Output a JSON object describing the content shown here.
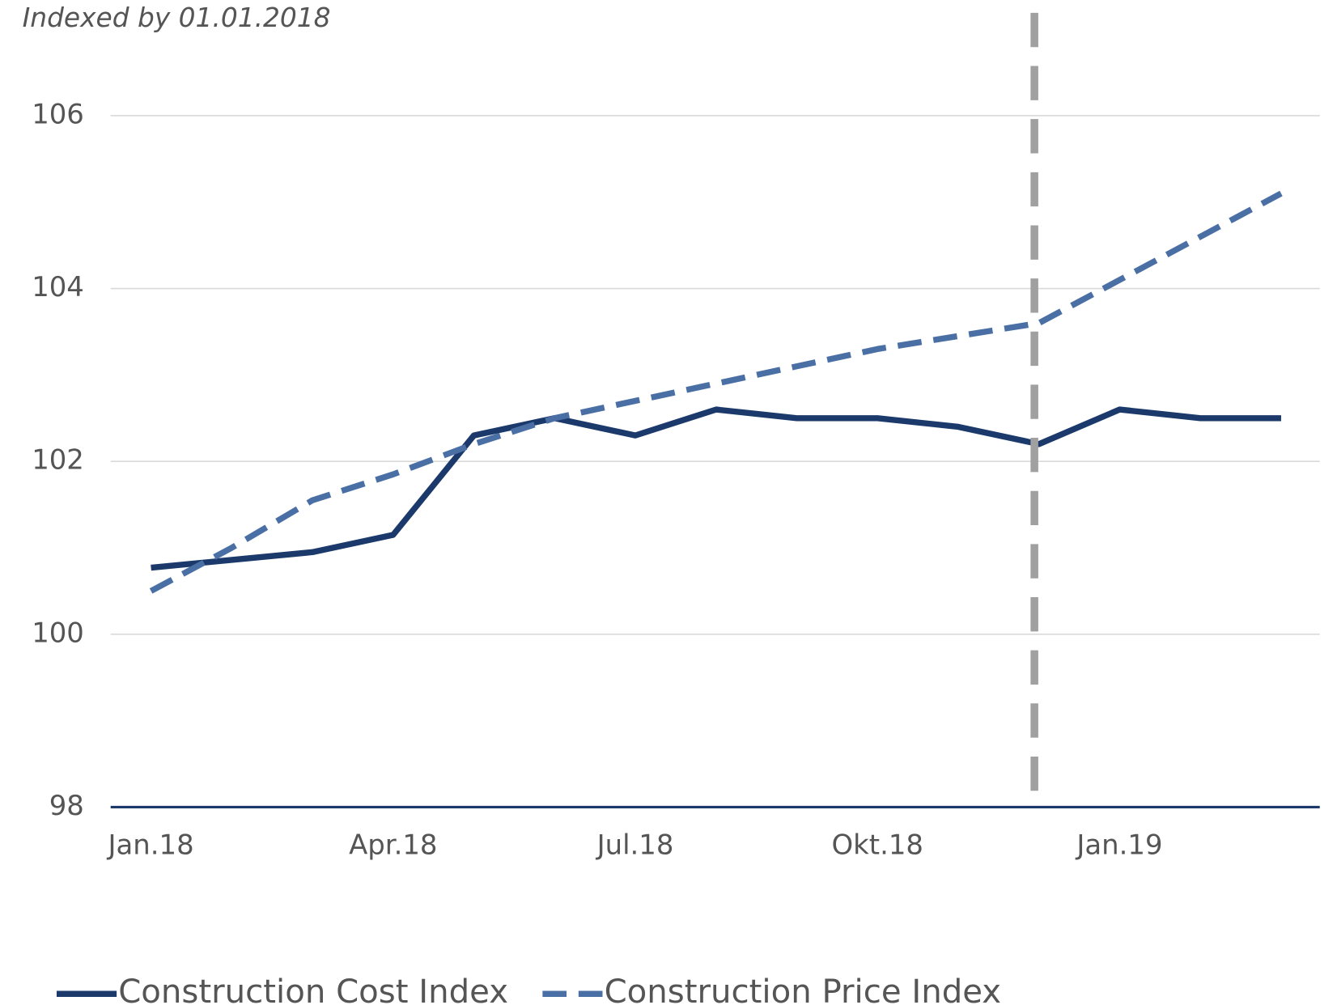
{
  "chart_data": {
    "type": "line",
    "subtitle": "Indexed by 01.01.2018",
    "categories": [
      "Jan.18",
      null,
      null,
      "Apr.18",
      null,
      null,
      "Jul.18",
      null,
      null,
      "Okt.18",
      null,
      null,
      "Jan.19",
      null,
      null
    ],
    "series": [
      {
        "name": "Construction Cost Index",
        "color": "#1b3a6b",
        "dash": false,
        "values": [
          100.77,
          100.86,
          100.95,
          101.15,
          102.3,
          102.5,
          102.3,
          102.6,
          102.5,
          102.5,
          102.4,
          102.2,
          102.6,
          102.5,
          102.5
        ]
      },
      {
        "name": "Construction Price Index",
        "color": "#4a6fa5",
        "dash": true,
        "values": [
          100.5,
          101.0,
          101.55,
          101.85,
          102.2,
          102.5,
          102.7,
          102.9,
          103.1,
          103.3,
          103.45,
          103.6,
          104.1,
          104.6,
          105.1
        ]
      }
    ],
    "ylim": [
      98,
      106
    ],
    "yticks": [
      98,
      100,
      102,
      104,
      106
    ],
    "grid": true,
    "legend": "bottom"
  }
}
